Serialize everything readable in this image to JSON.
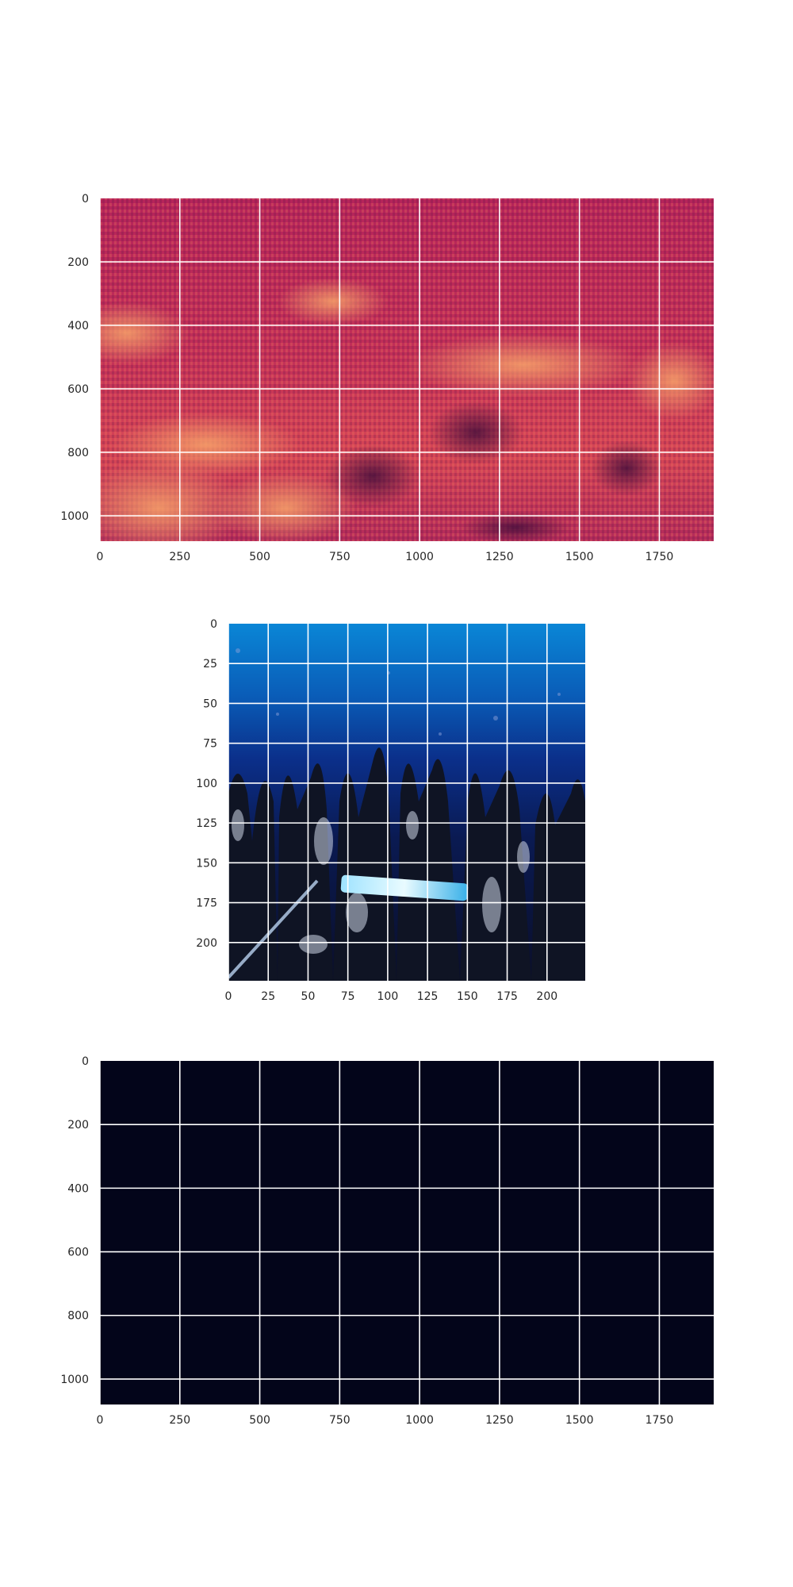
{
  "chart_data": [
    {
      "type": "heatmap",
      "title": "",
      "xlabel": "",
      "ylabel": "",
      "xlim": [
        0,
        1920
      ],
      "ylim": [
        1080,
        0
      ],
      "xticks": [
        "0",
        "250",
        "500",
        "750",
        "1000",
        "1250",
        "1500",
        "1750"
      ],
      "yticks": [
        "0",
        "200",
        "400",
        "600",
        "800",
        "1000"
      ],
      "xtick_values": [
        0,
        250,
        500,
        750,
        1000,
        1250,
        1500,
        1750
      ],
      "ytick_values": [
        0,
        200,
        400,
        600,
        800,
        1000
      ],
      "grid": true,
      "colormap": "rocket",
      "colors": {
        "base": "#b5245a",
        "dark": "#5a1245",
        "bright": "#f5965f"
      },
      "description_of_content": "striped interference-like intensity map"
    },
    {
      "type": "image",
      "title": "",
      "xlabel": "",
      "ylabel": "",
      "xlim": [
        0,
        224
      ],
      "ylim": [
        224,
        0
      ],
      "xticks": [
        "0",
        "25",
        "50",
        "75",
        "100",
        "125",
        "150",
        "175",
        "200"
      ],
      "yticks": [
        "0",
        "25",
        "50",
        "75",
        "100",
        "125",
        "150",
        "175",
        "200"
      ],
      "xtick_values": [
        0,
        25,
        50,
        75,
        100,
        125,
        150,
        175,
        200
      ],
      "ytick_values": [
        0,
        25,
        50,
        75,
        100,
        125,
        150,
        175,
        200
      ],
      "grid": true,
      "colors": {
        "water_top": "#0a86d6",
        "water_mid": "#0b2f8a",
        "floor": "#0b0f2a"
      }
    },
    {
      "type": "heatmap",
      "title": "",
      "xlabel": "",
      "ylabel": "",
      "xlim": [
        0,
        1920
      ],
      "ylim": [
        1080,
        0
      ],
      "xticks": [
        "0",
        "250",
        "500",
        "750",
        "1000",
        "1250",
        "1500",
        "1750"
      ],
      "yticks": [
        "0",
        "200",
        "400",
        "600",
        "800",
        "1000"
      ],
      "xtick_values": [
        0,
        250,
        500,
        750,
        1000,
        1250,
        1500,
        1750
      ],
      "ytick_values": [
        0,
        200,
        400,
        600,
        800,
        1000
      ],
      "grid": true,
      "colormap": "rocket",
      "colors": {
        "base": "#03051a"
      }
    }
  ]
}
